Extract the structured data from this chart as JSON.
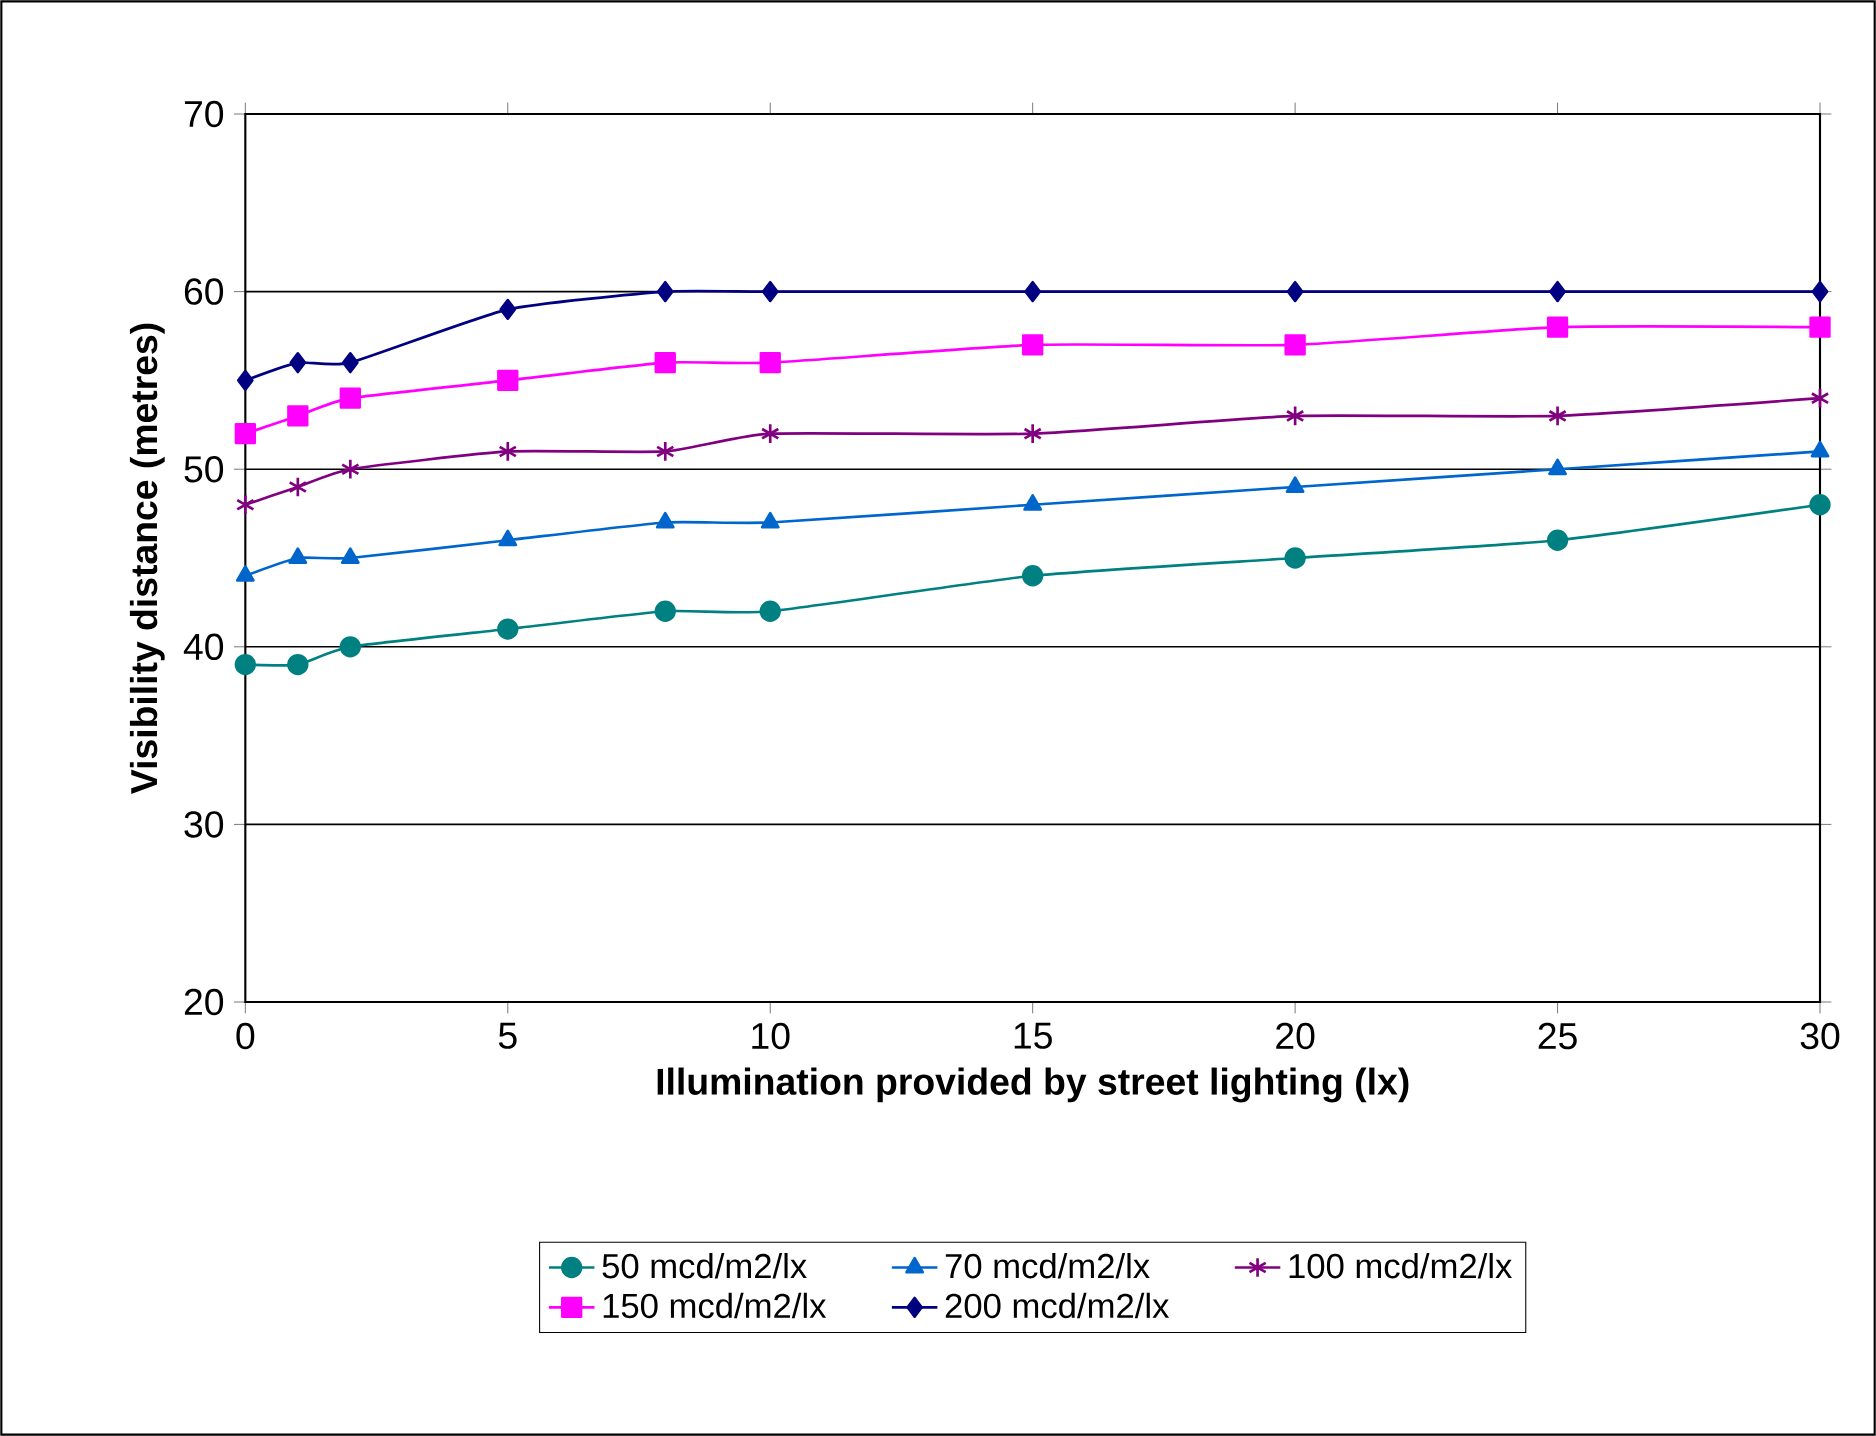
{
  "chart_data": {
    "type": "line",
    "xlabel": "Illumination provided by street lighting (lx)",
    "ylabel": "Visibility distance (metres)",
    "x": [
      0,
      1,
      2,
      5,
      8,
      10,
      15,
      20,
      25,
      30
    ],
    "xlim": [
      0,
      30
    ],
    "xticks": [
      0,
      5,
      10,
      15,
      20,
      25,
      30
    ],
    "ylim": [
      20,
      70
    ],
    "yticks": [
      20,
      30,
      40,
      50,
      60,
      70
    ],
    "grid": "y",
    "legend": "bottom",
    "line_style": "solid",
    "series": [
      {
        "name": "50 mcd/m2/lx",
        "color": "#008080",
        "marker": "circle",
        "values": [
          39,
          39,
          40,
          41,
          42,
          42,
          44,
          45,
          46,
          48
        ]
      },
      {
        "name": "70 mcd/m2/lx",
        "color": "#0066cc",
        "marker": "triangle",
        "values": [
          44,
          45,
          45,
          46,
          47,
          47,
          48,
          49,
          50,
          51
        ]
      },
      {
        "name": "100 mcd/m2/lx",
        "color": "#800080",
        "marker": "cross",
        "values": [
          48,
          49,
          50,
          51,
          51,
          52,
          52,
          53,
          53,
          54
        ]
      },
      {
        "name": "150 mcd/m2/lx",
        "color": "#ff00ff",
        "marker": "square",
        "values": [
          52,
          53,
          54,
          55,
          56,
          56,
          57,
          57,
          58,
          58
        ]
      },
      {
        "name": "200 mcd/m2/lx",
        "color": "#000080",
        "marker": "diamond",
        "values": [
          55,
          56,
          56,
          59,
          60,
          60,
          60,
          60,
          60,
          60
        ]
      }
    ]
  }
}
